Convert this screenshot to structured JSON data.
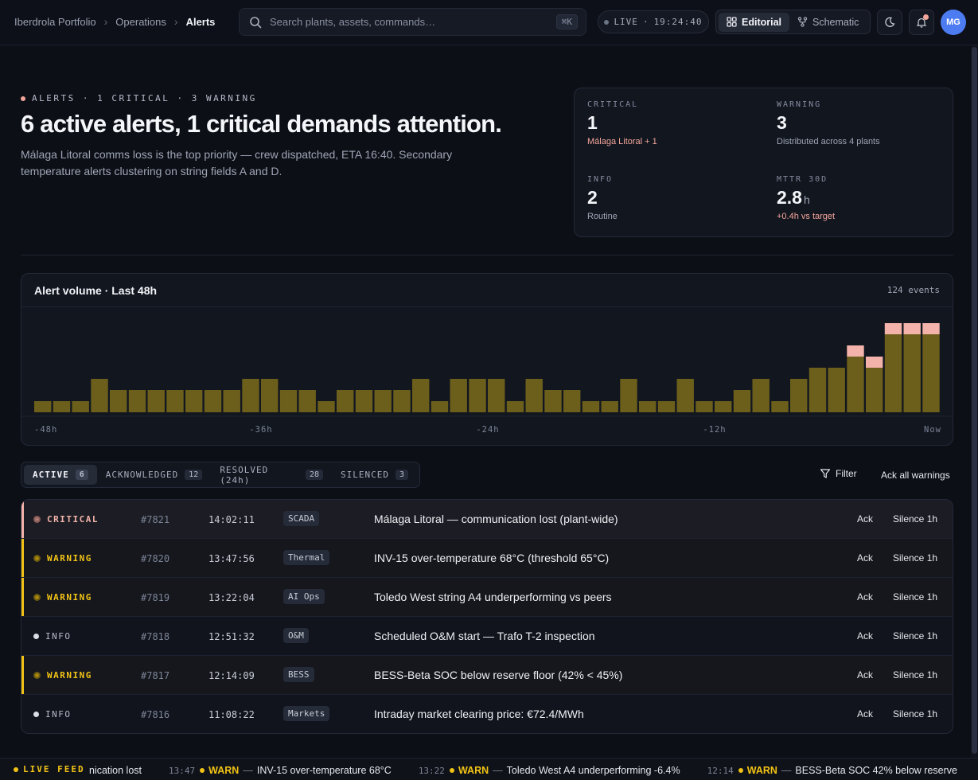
{
  "breadcrumb": {
    "items": [
      "Iberdrola Portfolio",
      "Operations"
    ],
    "current": "Alerts"
  },
  "search": {
    "placeholder": "Search plants, assets, commands…",
    "shortcut": "⌘K"
  },
  "live": {
    "label": "LIVE",
    "time": "19:24:40"
  },
  "view_toggle": {
    "editorial": "Editorial",
    "schematic": "Schematic",
    "active": "Editorial"
  },
  "user": {
    "initials": "MG"
  },
  "hero": {
    "eyebrow": "ALERTS · 1 CRITICAL · 3 WARNING",
    "headline": "6 active alerts, 1 critical demands attention.",
    "subtext": "Málaga Litoral comms loss is the top priority — crew dispatched, ETA 16:40. Secondary temperature alerts clustering on string fields A and D."
  },
  "stats": {
    "critical": {
      "label": "CRITICAL",
      "value": "1",
      "note": "Málaga Litoral + 1"
    },
    "warning": {
      "label": "WARNING",
      "value": "3",
      "note": "Distributed across 4 plants"
    },
    "info": {
      "label": "INFO",
      "value": "2",
      "note": "Routine"
    },
    "mttr": {
      "label": "MTTR 30D",
      "value": "2.8",
      "unit": "h",
      "note": "+0.4h vs target"
    }
  },
  "chart": {
    "title": "Alert volume · Last 48h",
    "count": "124 events",
    "x_labels": [
      "-48h",
      "-36h",
      "-24h",
      "-12h",
      "Now"
    ]
  },
  "chart_data": {
    "type": "bar",
    "title": "Alert volume · Last 48h",
    "x_ticks": [
      "-48h",
      "-36h",
      "-24h",
      "-12h",
      "Now"
    ],
    "series": [
      {
        "values": [
          1,
          1,
          1,
          3,
          2,
          2,
          2,
          2,
          2,
          2,
          2,
          3,
          3,
          2,
          2,
          1,
          2,
          2,
          2,
          2,
          3,
          1,
          3,
          3,
          3,
          1,
          3,
          2,
          2,
          1,
          1,
          3,
          1,
          1,
          3,
          1,
          1,
          2,
          3,
          1,
          3,
          4,
          4,
          5,
          4,
          7,
          7,
          7
        ]
      },
      {
        "values": [
          0,
          0,
          0,
          0,
          0,
          0,
          0,
          0,
          0,
          0,
          0,
          0,
          0,
          0,
          0,
          0,
          0,
          0,
          0,
          0,
          0,
          0,
          0,
          0,
          0,
          0,
          0,
          0,
          0,
          0,
          0,
          0,
          0,
          0,
          0,
          0,
          0,
          0,
          0,
          0,
          0,
          0,
          0,
          1,
          1,
          1,
          1,
          1
        ]
      }
    ],
    "colors": {
      "primary": "#6b5f1b",
      "critical": "#f4b3aa"
    }
  },
  "tabs": [
    {
      "label": "ACTIVE",
      "count": "6"
    },
    {
      "label": "ACKNOWLEDGED",
      "count": "12"
    },
    {
      "label": "RESOLVED (24h)",
      "count": "28"
    },
    {
      "label": "SILENCED",
      "count": "3"
    }
  ],
  "actions": {
    "filter": "Filter",
    "ack_all": "Ack all warnings"
  },
  "alerts": [
    {
      "severity": "CRITICAL",
      "level": "critical",
      "id": "#7821",
      "time": "14:02:11",
      "tag": "SCADA",
      "message": "Málaga Litoral — communication lost (plant-wide)",
      "ack": "Ack",
      "silence": "Silence 1h"
    },
    {
      "severity": "WARNING",
      "level": "warning",
      "id": "#7820",
      "time": "13:47:56",
      "tag": "Thermal",
      "message": "INV-15 over-temperature 68°C (threshold 65°C)",
      "ack": "Ack",
      "silence": "Silence 1h"
    },
    {
      "severity": "WARNING",
      "level": "warning",
      "id": "#7819",
      "time": "13:22:04",
      "tag": "AI Ops",
      "message": "Toledo West string A4 underperforming vs peers",
      "ack": "Ack",
      "silence": "Silence 1h"
    },
    {
      "severity": "INFO",
      "level": "info",
      "id": "#7818",
      "time": "12:51:32",
      "tag": "O&M",
      "message": "Scheduled O&M start — Trafo T-2 inspection",
      "ack": "Ack",
      "silence": "Silence 1h"
    },
    {
      "severity": "WARNING",
      "level": "warning",
      "id": "#7817",
      "time": "12:14:09",
      "tag": "BESS",
      "message": "BESS-Beta SOC below reserve floor (42% < 45%)",
      "ack": "Ack",
      "silence": "Silence 1h"
    },
    {
      "severity": "INFO",
      "level": "info",
      "id": "#7816",
      "time": "11:08:22",
      "tag": "Markets",
      "message": "Intraday market clearing price: €72.4/MWh",
      "ack": "Ack",
      "silence": "Silence 1h"
    }
  ],
  "ticker": {
    "label": "LIVE FEED",
    "lead": "nication lost",
    "items": [
      {
        "time": "13:47",
        "severity": "WARN",
        "text": "INV-15 over-temperature 68°C"
      },
      {
        "time": "13:22",
        "severity": "WARN",
        "text": "Toledo West A4 underperforming -6.4%"
      },
      {
        "time": "12:14",
        "severity": "WARN",
        "text": "BESS-Beta SOC 42% below reserve"
      }
    ]
  },
  "colors": {
    "critical": "#f4b3aa",
    "warning": "#f2c316",
    "info": "#d9dde6",
    "accent": "#4d7cf2"
  }
}
